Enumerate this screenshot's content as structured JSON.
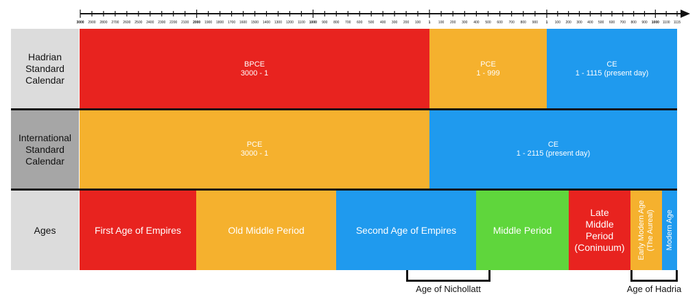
{
  "colors": {
    "red": "#e8231f",
    "yellow": "#f5b12e",
    "blue": "#1f9aee",
    "green": "#5fd63c",
    "label_light": "#dcdcdc",
    "label_dark": "#a6a6a6"
  },
  "timeline_axis": {
    "groups": [
      {
        "labels": [
          "3000",
          "2900",
          "2800",
          "2700",
          "2600",
          "2500",
          "2400",
          "2300",
          "2200",
          "2100",
          "2000",
          "1900",
          "1800",
          "1700",
          "1600",
          "1500",
          "1400",
          "1300",
          "1200",
          "1100",
          "1000",
          "900",
          "800",
          "700",
          "600",
          "500",
          "400",
          "300",
          "200",
          "100",
          "1"
        ],
        "bold": [
          "3000",
          "2000",
          "1000",
          "1"
        ]
      },
      {
        "labels": [
          "100",
          "200",
          "300",
          "400",
          "500",
          "600",
          "700",
          "800",
          "900",
          "1"
        ],
        "bold": [
          "1"
        ]
      },
      {
        "labels": [
          "100",
          "200",
          "300",
          "400",
          "500",
          "600",
          "700",
          "800",
          "900",
          "1000",
          "1100",
          "1115"
        ],
        "bold": [
          "1000"
        ]
      }
    ]
  },
  "rows": {
    "hadrian": {
      "label": [
        "Hadrian",
        "Standard",
        "Calendar"
      ],
      "segments": [
        {
          "name": "BPCE",
          "range": "3000 - 1"
        },
        {
          "name": "PCE",
          "range": "1 - 999"
        },
        {
          "name": "CE",
          "range": "1 - 1115 (present day)"
        }
      ]
    },
    "international": {
      "label": [
        "International",
        "Standard",
        "Calendar"
      ],
      "segments": [
        {
          "name": "PCE",
          "range": "3000 - 1"
        },
        {
          "name": "CE",
          "range": "1 - 2115 (present day)"
        }
      ]
    },
    "ages": {
      "label": "Ages",
      "segments": [
        "First Age of Empires",
        "Old Middle Period",
        "Second Age of Empires",
        "Middle Period",
        [
          "Late",
          "Middle",
          "Period",
          "(Coninuum)"
        ],
        [
          "Early Modern Age",
          "(The Aureal)"
        ],
        "Modern Age"
      ]
    }
  },
  "brackets": {
    "nichollatt": "Age of Nichollatt",
    "hadria": "Age of Hadria"
  }
}
